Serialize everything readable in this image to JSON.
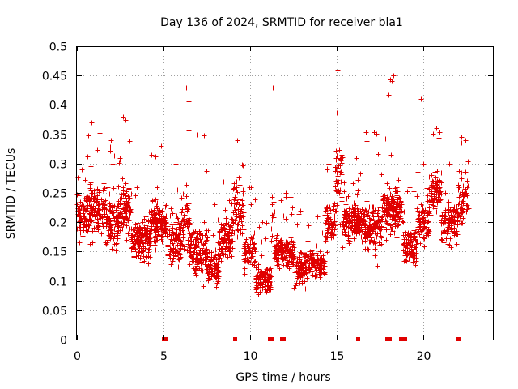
{
  "chart_data": {
    "type": "scatter",
    "title": "Day 136 of 2024, SRMTID for receiver bla1",
    "xlabel": "GPS time / hours",
    "ylabel": "SRMTID / TECUs",
    "xlim": [
      0,
      24
    ],
    "ylim": [
      0,
      0.5
    ],
    "x_ticks": [
      0,
      5,
      10,
      15,
      20
    ],
    "x_tick_labels": [
      "0",
      "5",
      "10",
      "15",
      "20"
    ],
    "y_ticks": [
      0,
      0.05,
      0.1,
      0.15,
      0.2,
      0.25,
      0.3,
      0.35,
      0.4,
      0.45,
      0.5
    ],
    "y_tick_labels": [
      "0",
      "0.05",
      "0.1",
      "0.15",
      "0.2",
      "0.25",
      "0.3",
      "0.35",
      "0.4",
      "0.45",
      "0.5"
    ],
    "grid": true,
    "marker": "+",
    "color": "#e00000",
    "zero_value_times": [
      5.0,
      5.1,
      9.1,
      11.1,
      11.2,
      11.8,
      11.9,
      16.2,
      17.9,
      18.0,
      18.7,
      18.8,
      18.9,
      22.0
    ],
    "series": [
      {
        "name": "SRMTID",
        "segments": [
          {
            "x_start": 0.0,
            "x_end": 0.5,
            "y_base": 0.21,
            "y_spread": 0.06,
            "y_peak": 0.29,
            "density": 28
          },
          {
            "x_start": 0.5,
            "x_end": 1.6,
            "y_base": 0.22,
            "y_spread": 0.08,
            "y_peak": 0.37,
            "density": 30
          },
          {
            "x_start": 1.6,
            "x_end": 2.4,
            "y_base": 0.2,
            "y_spread": 0.07,
            "y_peak": 0.34,
            "density": 30
          },
          {
            "x_start": 2.4,
            "x_end": 3.1,
            "y_base": 0.22,
            "y_spread": 0.08,
            "y_peak": 0.38,
            "density": 30
          },
          {
            "x_start": 3.1,
            "x_end": 4.2,
            "y_base": 0.17,
            "y_spread": 0.06,
            "y_peak": 0.26,
            "density": 32
          },
          {
            "x_start": 4.2,
            "x_end": 5.2,
            "y_base": 0.2,
            "y_spread": 0.07,
            "y_peak": 0.33,
            "density": 30
          },
          {
            "x_start": 5.2,
            "x_end": 6.0,
            "y_base": 0.17,
            "y_spread": 0.07,
            "y_peak": 0.3,
            "density": 30
          },
          {
            "x_start": 6.0,
            "x_end": 6.5,
            "y_base": 0.2,
            "y_spread": 0.09,
            "y_peak": 0.43,
            "density": 28
          },
          {
            "x_start": 6.5,
            "x_end": 7.5,
            "y_base": 0.15,
            "y_spread": 0.07,
            "y_peak": 0.35,
            "density": 32
          },
          {
            "x_start": 7.5,
            "x_end": 8.2,
            "y_base": 0.12,
            "y_spread": 0.05,
            "y_peak": 0.23,
            "density": 28
          },
          {
            "x_start": 8.2,
            "x_end": 9.0,
            "y_base": 0.17,
            "y_spread": 0.06,
            "y_peak": 0.27,
            "density": 28
          },
          {
            "x_start": 9.0,
            "x_end": 9.6,
            "y_base": 0.22,
            "y_spread": 0.08,
            "y_peak": 0.34,
            "density": 26
          },
          {
            "x_start": 9.6,
            "x_end": 10.3,
            "y_base": 0.15,
            "y_spread": 0.06,
            "y_peak": 0.26,
            "density": 26
          },
          {
            "x_start": 10.3,
            "x_end": 11.2,
            "y_base": 0.1,
            "y_spread": 0.04,
            "y_peak": 0.2,
            "density": 30
          },
          {
            "x_start": 11.2,
            "x_end": 11.4,
            "y_base": 0.2,
            "y_spread": 0.08,
            "y_peak": 0.43,
            "density": 14
          },
          {
            "x_start": 11.4,
            "x_end": 12.5,
            "y_base": 0.15,
            "y_spread": 0.05,
            "y_peak": 0.25,
            "density": 30
          },
          {
            "x_start": 12.5,
            "x_end": 13.2,
            "y_base": 0.12,
            "y_spread": 0.05,
            "y_peak": 0.22,
            "density": 28
          },
          {
            "x_start": 13.2,
            "x_end": 14.3,
            "y_base": 0.13,
            "y_spread": 0.04,
            "y_peak": 0.21,
            "density": 28
          },
          {
            "x_start": 14.3,
            "x_end": 14.9,
            "y_base": 0.2,
            "y_spread": 0.06,
            "y_peak": 0.3,
            "density": 26
          },
          {
            "x_start": 14.9,
            "x_end": 15.3,
            "y_base": 0.27,
            "y_spread": 0.1,
            "y_peak": 0.46,
            "density": 26
          },
          {
            "x_start": 15.3,
            "x_end": 16.6,
            "y_base": 0.2,
            "y_spread": 0.06,
            "y_peak": 0.31,
            "density": 32
          },
          {
            "x_start": 16.6,
            "x_end": 17.6,
            "y_base": 0.19,
            "y_spread": 0.07,
            "y_peak": 0.4,
            "density": 30
          },
          {
            "x_start": 17.6,
            "x_end": 18.8,
            "y_base": 0.22,
            "y_spread": 0.07,
            "y_peak": 0.45,
            "density": 32
          },
          {
            "x_start": 18.8,
            "x_end": 19.6,
            "y_base": 0.16,
            "y_spread": 0.05,
            "y_peak": 0.26,
            "density": 28
          },
          {
            "x_start": 19.6,
            "x_end": 20.3,
            "y_base": 0.2,
            "y_spread": 0.06,
            "y_peak": 0.41,
            "density": 26
          },
          {
            "x_start": 20.3,
            "x_end": 21.0,
            "y_base": 0.25,
            "y_spread": 0.06,
            "y_peak": 0.36,
            "density": 28
          },
          {
            "x_start": 21.0,
            "x_end": 22.0,
            "y_base": 0.2,
            "y_spread": 0.06,
            "y_peak": 0.3,
            "density": 28
          },
          {
            "x_start": 22.0,
            "x_end": 22.6,
            "y_base": 0.24,
            "y_spread": 0.07,
            "y_peak": 0.35,
            "density": 24
          }
        ]
      }
    ]
  }
}
